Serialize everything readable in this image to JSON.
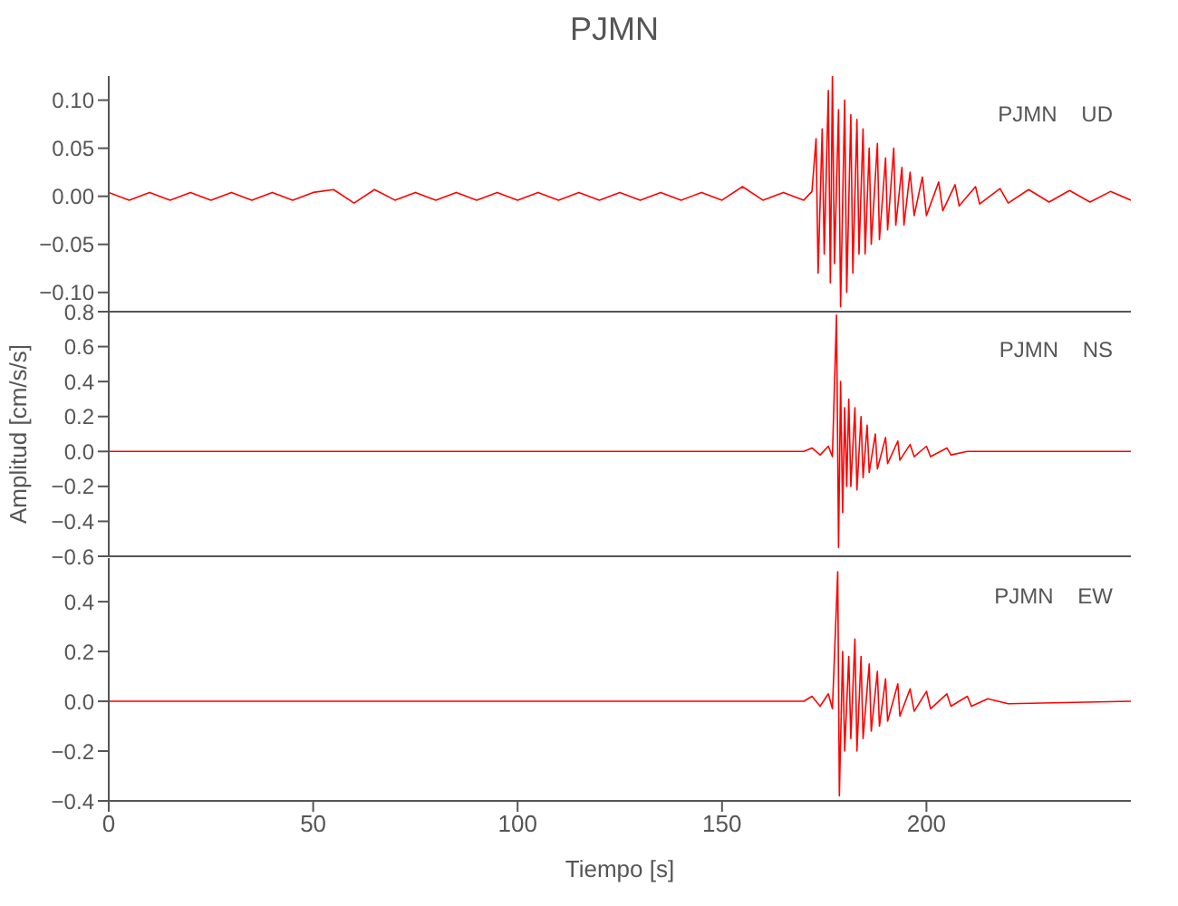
{
  "chart_data": [
    {
      "type": "line",
      "title": "PJMN",
      "xlim": [
        0,
        250
      ],
      "xticks": [
        0,
        50,
        100,
        150,
        200
      ],
      "ylim": [
        -0.12,
        0.125
      ],
      "yticks": [
        {
          "value": -0.1,
          "label": "−0.10"
        },
        {
          "value": -0.05,
          "label": "−0.05"
        },
        {
          "value": 0,
          "label": "0.00"
        },
        {
          "value": 0.05,
          "label": "0.05"
        },
        {
          "value": 0.1,
          "label": "0.10"
        }
      ],
      "tick_labels": "y",
      "annotations": [
        "PJMN    UD"
      ],
      "series": [
        {
          "color": "#ff0000",
          "x": [
            0,
            5,
            10,
            15,
            20,
            25,
            30,
            35,
            40,
            45,
            50,
            55,
            60,
            65,
            70,
            75,
            80,
            85,
            90,
            95,
            100,
            105,
            110,
            115,
            120,
            125,
            130,
            135,
            140,
            145,
            150,
            155,
            160,
            165,
            170,
            172,
            173,
            173.5,
            174.5,
            175,
            176,
            176.5,
            177,
            177.5,
            178.5,
            179,
            180,
            180.5,
            181.5,
            182,
            183,
            183.5,
            184.5,
            185,
            186,
            186.5,
            188,
            188.5,
            190,
            190.5,
            192,
            192.5,
            194,
            194.5,
            196,
            197,
            199,
            200,
            203,
            204,
            207,
            208,
            212,
            213,
            218,
            220,
            225,
            230,
            235,
            240,
            245,
            250
          ],
          "values": [
            0.004,
            -0.004,
            0.004,
            -0.004,
            0.004,
            -0.004,
            0.004,
            -0.004,
            0.004,
            -0.004,
            0.004,
            0.007,
            -0.007,
            0.007,
            -0.004,
            0.004,
            -0.004,
            0.004,
            -0.004,
            0.004,
            -0.004,
            0.004,
            -0.004,
            0.004,
            -0.004,
            0.004,
            -0.004,
            0.004,
            -0.004,
            0.004,
            -0.004,
            0.01,
            -0.004,
            0.004,
            -0.004,
            0.005,
            0.06,
            -0.08,
            0.07,
            -0.06,
            0.11,
            -0.09,
            0.125,
            -0.07,
            0.09,
            -0.115,
            0.1,
            -0.1,
            0.085,
            -0.08,
            0.08,
            -0.06,
            0.07,
            -0.06,
            0.05,
            -0.05,
            0.055,
            -0.045,
            0.04,
            -0.035,
            0.05,
            -0.03,
            0.03,
            -0.03,
            0.025,
            -0.02,
            0.02,
            -0.02,
            0.015,
            -0.015,
            0.012,
            -0.01,
            0.01,
            -0.008,
            0.008,
            -0.007,
            0.007,
            -0.006,
            0.006,
            -0.006,
            0.005,
            -0.004
          ]
        }
      ]
    },
    {
      "type": "line",
      "ylabel": "Amplitud [cm/s/s]",
      "xlim": [
        0,
        250
      ],
      "xticks": [
        0,
        50,
        100,
        150,
        200
      ],
      "ylim": [
        -0.6,
        0.8
      ],
      "yticks": [
        {
          "value": -0.6,
          "label": "−0.6"
        },
        {
          "value": -0.4,
          "label": "−0.4"
        },
        {
          "value": -0.2,
          "label": "−0.2"
        },
        {
          "value": 0,
          "label": "0.0"
        },
        {
          "value": 0.2,
          "label": "0.2"
        },
        {
          "value": 0.4,
          "label": "0.4"
        },
        {
          "value": 0.6,
          "label": "0.6"
        },
        {
          "value": 0.8,
          "label": "0.8"
        }
      ],
      "tick_labels": "y",
      "annotations": [
        "PJMN    NS"
      ],
      "series": [
        {
          "color": "#ff0000",
          "x": [
            0,
            170,
            172,
            174,
            176,
            177,
            178,
            178.5,
            179,
            179.5,
            180,
            180.5,
            181,
            181.5,
            182.5,
            183,
            184,
            184.5,
            185.5,
            186,
            187.5,
            188,
            190,
            190.5,
            193,
            193.5,
            196,
            197,
            200,
            201,
            205,
            206,
            210,
            250
          ],
          "values": [
            0,
            0,
            0.02,
            -0.02,
            0.03,
            -0.03,
            0.78,
            -0.55,
            0.4,
            -0.35,
            0.25,
            -0.2,
            0.3,
            -0.2,
            0.25,
            -0.22,
            0.2,
            -0.15,
            0.15,
            -0.12,
            0.1,
            -0.1,
            0.08,
            -0.07,
            0.06,
            -0.05,
            0.04,
            -0.03,
            0.03,
            -0.03,
            0.02,
            -0.02,
            0,
            0
          ]
        }
      ]
    },
    {
      "type": "line",
      "xlabel": "Tiempo [s]",
      "xlim": [
        0,
        250
      ],
      "xticks": [
        0,
        50,
        100,
        150,
        200
      ],
      "ylim": [
        -0.4,
        0.575
      ],
      "yticks": [
        {
          "value": -0.4,
          "label": "−0.4"
        },
        {
          "value": -0.2,
          "label": "−0.2"
        },
        {
          "value": 0,
          "label": "0.0"
        },
        {
          "value": 0.2,
          "label": "0.2"
        },
        {
          "value": 0.4,
          "label": "0.4"
        }
      ],
      "annotations": [
        "PJMN    EW"
      ],
      "series": [
        {
          "color": "#ff0000",
          "x": [
            0,
            170,
            172,
            174,
            176,
            177,
            178.3,
            178.7,
            179.5,
            180,
            181,
            181.5,
            182.5,
            183,
            184,
            184.5,
            186,
            186.5,
            188,
            188.5,
            190,
            190.5,
            193,
            193.5,
            196,
            197,
            200,
            201,
            205,
            206,
            210,
            211,
            215,
            220,
            250
          ],
          "values": [
            0,
            0,
            0.02,
            -0.02,
            0.03,
            -0.03,
            0.52,
            -0.38,
            0.2,
            -0.2,
            0.18,
            -0.15,
            0.25,
            -0.2,
            0.18,
            -0.15,
            0.15,
            -0.12,
            0.12,
            -0.1,
            0.09,
            -0.08,
            0.07,
            -0.06,
            0.05,
            -0.04,
            0.04,
            -0.03,
            0.03,
            -0.02,
            0.02,
            -0.02,
            0.01,
            -0.01,
            0
          ]
        }
      ]
    }
  ]
}
